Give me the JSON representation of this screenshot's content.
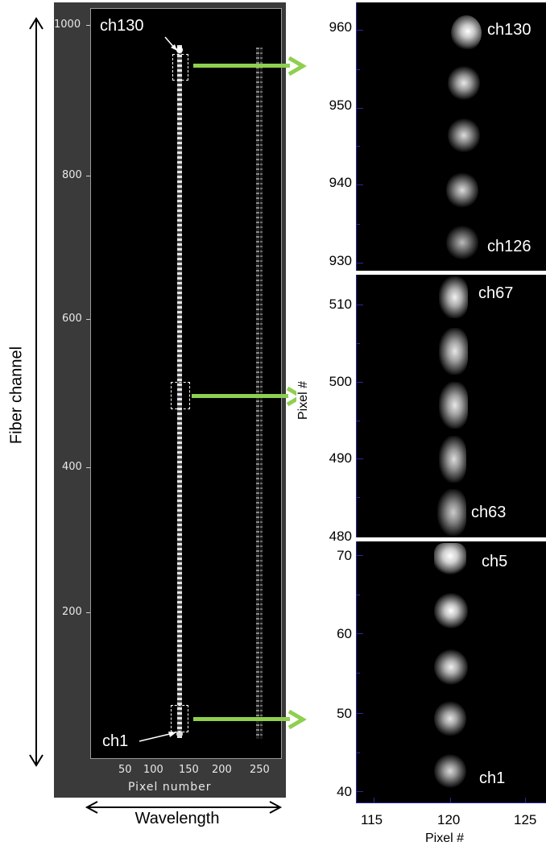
{
  "main": {
    "yticks": [
      "1000",
      "800",
      "600",
      "400",
      "200"
    ],
    "xticks": [
      "50",
      "100",
      "150",
      "200",
      "250"
    ],
    "xlabel": "Pixel number",
    "callout_top": "ch130",
    "callout_bottom": "ch1"
  },
  "outer": {
    "ylabel": "Fiber channel",
    "xlabel": "Wavelength"
  },
  "zoom_top": {
    "yticks": [
      "960",
      "950",
      "940",
      "930"
    ],
    "labels": [
      "ch130",
      "ch126"
    ]
  },
  "zoom_mid": {
    "yticks": [
      "510",
      "500",
      "490",
      "480"
    ],
    "labels": [
      "ch67",
      "ch63"
    ],
    "ylabel": "Pixel #"
  },
  "zoom_bot": {
    "yticks": [
      "70",
      "60",
      "50",
      "40"
    ],
    "labels": [
      "ch5",
      "ch1"
    ],
    "xticks": [
      "115",
      "120",
      "125"
    ],
    "xlabel": "Pixel #"
  },
  "colors": {
    "arrow": "#8fcf4f",
    "axis_blue": "#2a2aa0"
  }
}
